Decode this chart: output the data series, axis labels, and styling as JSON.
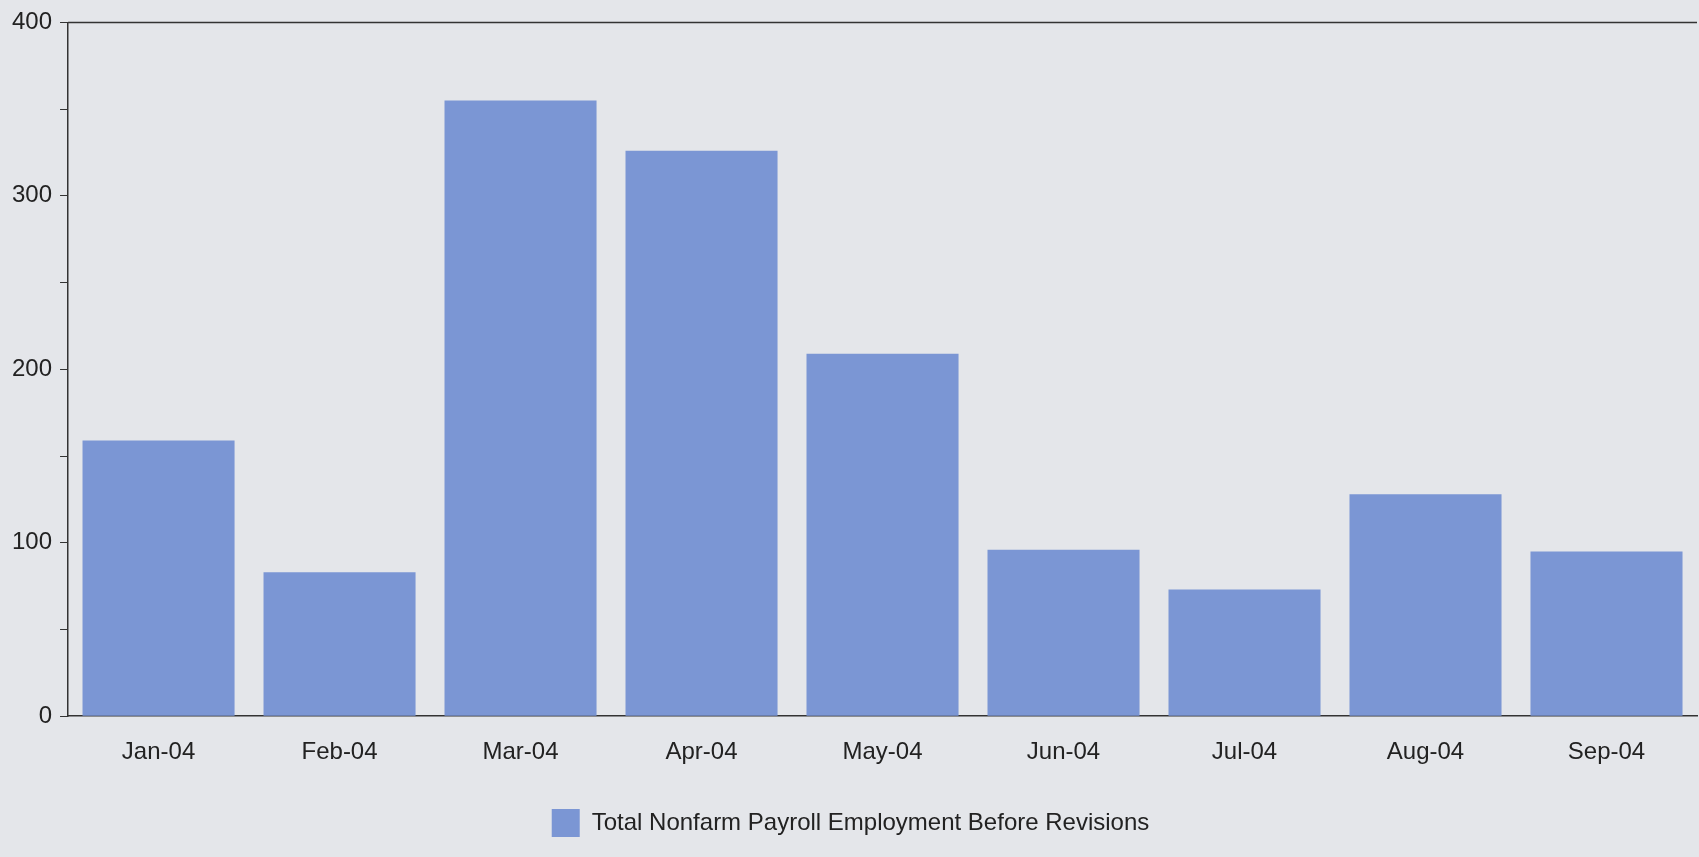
{
  "chart_data": {
    "type": "bar",
    "categories": [
      "Jan-04",
      "Feb-04",
      "Mar-04",
      "Apr-04",
      "May-04",
      "Jun-04",
      "Jul-04",
      "Aug-04",
      "Sep-04"
    ],
    "series": [
      {
        "name": "Total Nonfarm Payroll Employment Before Revisions",
        "color": "#7b96d4",
        "values": [
          159,
          83,
          355,
          326,
          209,
          96,
          73,
          128,
          95
        ]
      }
    ],
    "ylim": [
      0,
      400
    ],
    "yticks": [
      0,
      {
        "value": 50,
        "label": null
      },
      100,
      {
        "value": 150,
        "label": null
      },
      200,
      {
        "value": 250,
        "label": null
      },
      300,
      {
        "value": 350,
        "label": null
      },
      400
    ],
    "grid": false,
    "legend": "bottom"
  }
}
